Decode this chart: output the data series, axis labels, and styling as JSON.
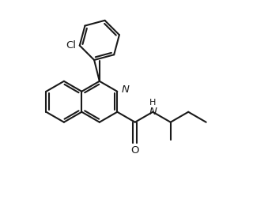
{
  "bg_color": "#ffffff",
  "line_color": "#1a1a1a",
  "line_width": 1.5,
  "fig_width": 3.2,
  "fig_height": 2.52,
  "dpi": 100,
  "font_size": 9.5,
  "label_Cl": "Cl",
  "label_N": "N",
  "label_NH": "H",
  "label_N_sym": "N",
  "label_O": "O"
}
